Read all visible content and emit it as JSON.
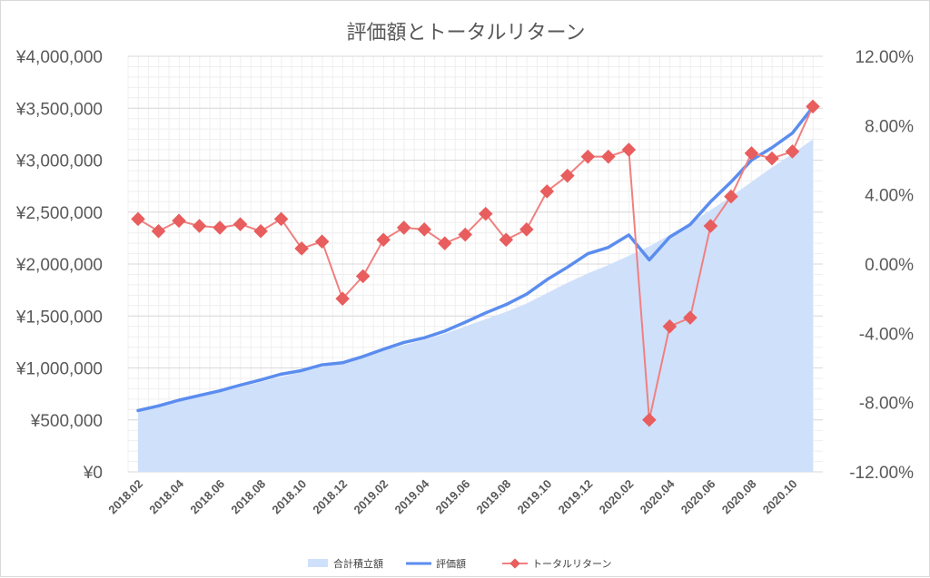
{
  "chart_data": {
    "type": "line",
    "title": "評価額とトータルリターン",
    "categories": [
      "2018.02",
      "2018.03",
      "2018.04",
      "2018.05",
      "2018.06",
      "2018.07",
      "2018.08",
      "2018.09",
      "2018.10",
      "2018.11",
      "2018.12",
      "2019.01",
      "2019.02",
      "2019.03",
      "2019.04",
      "2019.05",
      "2019.06",
      "2019.07",
      "2019.08",
      "2019.09",
      "2019.10",
      "2019.11",
      "2019.12",
      "2020.01",
      "2020.02",
      "2020.03",
      "2020.04",
      "2020.05",
      "2020.06",
      "2020.07",
      "2020.08",
      "2020.09",
      "2020.10",
      "2020.11"
    ],
    "xtick_labels": [
      "2018.02",
      "2018.04",
      "2018.06",
      "2018.08",
      "2018.10",
      "2018.12",
      "2019.02",
      "2019.04",
      "2019.06",
      "2019.08",
      "2019.10",
      "2019.12",
      "2020.02",
      "2020.04",
      "2020.06",
      "2020.08",
      "2020.10"
    ],
    "y_left": {
      "ylim": [
        0,
        4000000
      ],
      "ticks": [
        0,
        500000,
        1000000,
        1500000,
        2000000,
        2500000,
        3000000,
        3500000,
        4000000
      ],
      "tick_labels": [
        "¥0",
        "¥500,000",
        "¥1,000,000",
        "¥1,500,000",
        "¥2,000,000",
        "¥2,500,000",
        "¥3,000,000",
        "¥3,500,000",
        "¥4,000,000"
      ]
    },
    "y_right": {
      "ylim": [
        -12,
        12
      ],
      "ticks": [
        -12,
        -8,
        -4,
        0,
        4,
        8,
        12
      ],
      "tick_labels": [
        "-12.00%",
        "-8.00%",
        "-4.00%",
        "0.00%",
        "4.00%",
        "8.00%",
        "12.00%"
      ]
    },
    "series": [
      {
        "name": "合計積立額",
        "kind": "area",
        "axis": "left",
        "color": "#cfe0fb",
        "values": [
          580000,
          625000,
          675000,
          720000,
          765000,
          815000,
          865000,
          915000,
          960000,
          1010000,
          1060000,
          1110000,
          1170000,
          1220000,
          1270000,
          1330000,
          1400000,
          1470000,
          1540000,
          1620000,
          1720000,
          1820000,
          1910000,
          1990000,
          2080000,
          2170000,
          2280000,
          2390000,
          2520000,
          2650000,
          2790000,
          2930000,
          3060000,
          3200000
        ]
      },
      {
        "name": "評価額",
        "kind": "line",
        "axis": "left",
        "color": "#5b8def",
        "values": [
          590000,
          635000,
          690000,
          735000,
          780000,
          835000,
          885000,
          940000,
          975000,
          1030000,
          1050000,
          1110000,
          1180000,
          1245000,
          1290000,
          1355000,
          1440000,
          1530000,
          1610000,
          1710000,
          1850000,
          1970000,
          2100000,
          2160000,
          2280000,
          2040000,
          2260000,
          2380000,
          2600000,
          2790000,
          3000000,
          3120000,
          3260000,
          3510000
        ]
      },
      {
        "name": "トータルリターン",
        "kind": "line-marker",
        "axis": "right",
        "color": "#f08080",
        "marker_color": "#e85d5d",
        "values": [
          2.6,
          1.9,
          2.5,
          2.2,
          2.1,
          2.3,
          1.9,
          2.6,
          0.9,
          1.3,
          -2.0,
          -0.7,
          1.4,
          2.1,
          2.0,
          1.2,
          1.7,
          2.9,
          1.4,
          2.0,
          4.2,
          5.1,
          6.2,
          6.2,
          6.6,
          -9.0,
          -3.6,
          -3.1,
          2.2,
          3.9,
          6.4,
          6.1,
          6.5,
          9.1
        ]
      }
    ],
    "legend": [
      "合計積立額",
      "評価額",
      "トータルリターン"
    ],
    "legend_position": "bottom",
    "grid": true
  }
}
